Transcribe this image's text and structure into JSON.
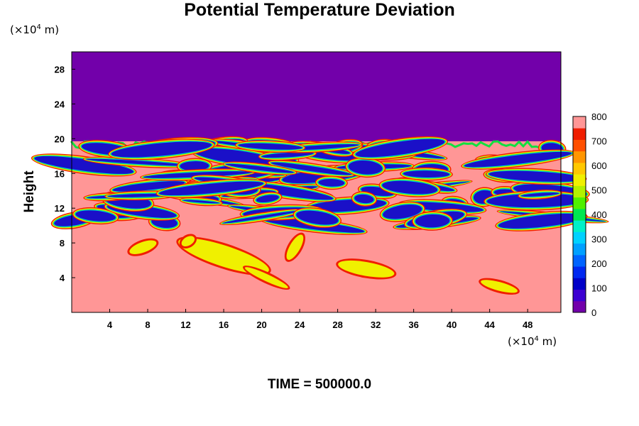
{
  "chart_data": {
    "type": "heatmap",
    "title": "Potential Temperature Deviation",
    "ylabel": "Height",
    "x_unit": "(×10⁴ m)",
    "y_unit": "(×10⁴ m)",
    "xlim": [
      0,
      51.5
    ],
    "ylim": [
      0,
      30
    ],
    "x_ticks": [
      4,
      8,
      12,
      16,
      20,
      24,
      28,
      32,
      36,
      40,
      44,
      48
    ],
    "y_ticks": [
      4,
      8,
      12,
      16,
      20,
      24,
      28
    ],
    "colorbar": {
      "min": 0,
      "max": 800,
      "step": 50,
      "tick_labels": [
        0,
        100,
        200,
        300,
        400,
        500,
        600,
        700,
        800
      ],
      "colors": [
        "#7200aa",
        "#3c00d2",
        "#0000c8",
        "#0028f0",
        "#0064ff",
        "#00a0ff",
        "#00d2ff",
        "#00f0c8",
        "#00e650",
        "#50f000",
        "#b4f000",
        "#f0f000",
        "#ffc800",
        "#ff9600",
        "#ff5000",
        "#f01e00"
      ],
      "top_color": "#ff9696"
    },
    "regions": {
      "upper_layer": {
        "from_height": 19.7,
        "to_height": 30,
        "value": 0
      },
      "lower_layer": {
        "from_height": 0,
        "to_height": 19.7,
        "value": 800
      }
    },
    "caption": "TIME = 500000.0"
  },
  "colors": {
    "upper": "#7200aa",
    "lower": "#ff9696",
    "band_blue": "#1a10c8",
    "band_cyan": "#00c8e6",
    "band_green": "#10e040",
    "band_yellow": "#f0f000",
    "band_red": "#f01e00"
  }
}
